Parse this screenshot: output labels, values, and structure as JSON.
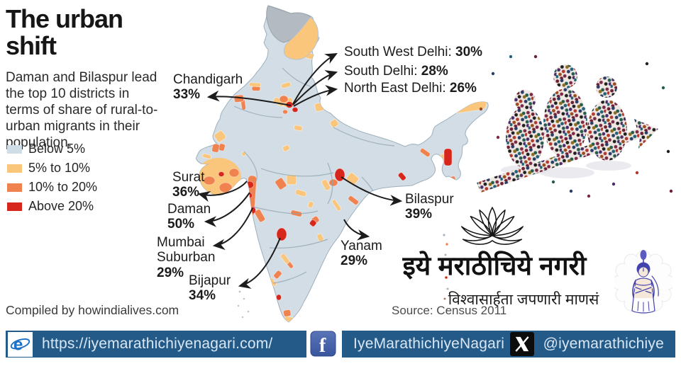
{
  "header": {
    "title": "The urban shift",
    "subtitle": "Daman and Bilaspur lead the top 10 districts in terms of share of rural-to-urban migrants in their population."
  },
  "legend": {
    "items": [
      {
        "label": "Below 5%",
        "color": "#cfdde6"
      },
      {
        "label": "5% to 10%",
        "color": "#f9c67c"
      },
      {
        "label": "10% to 20%",
        "color": "#f08250"
      },
      {
        "label": "Above 20%",
        "color": "#d7271d"
      }
    ]
  },
  "map": {
    "callouts": [
      {
        "name": "Chandigarh",
        "value": "33%"
      },
      {
        "name": "South West Delhi: ",
        "value": "30%"
      },
      {
        "name": "South Delhi: ",
        "value": "28%"
      },
      {
        "name": "North East Delhi: ",
        "value": "26%"
      },
      {
        "name": "Surat",
        "value": "36%"
      },
      {
        "name": "Daman",
        "value": "50%"
      },
      {
        "name": "Mumbai Suburban",
        "value": "29%"
      },
      {
        "name": "Bijapur",
        "value": "34%"
      },
      {
        "name": "Bilaspur",
        "value": "39%"
      },
      {
        "name": "Yanam",
        "value": "29%"
      }
    ],
    "source": "Source: Census 2011",
    "compiled_by": "Compiled by howindialives.com"
  },
  "branding": {
    "name_devanagari": "इये मराठीचिये नगरी",
    "tagline_devanagari": "विश्वासार्हता जपणारी माणसं"
  },
  "footer": {
    "website": "https://iyemarathichiyenagari.com/",
    "facebook_label": "IyeMarathichiyeNagari",
    "x_handle": "@iyemarathichiye"
  },
  "chart_data": {
    "type": "choropleth_map",
    "region": "India (districts)",
    "metric": "Share of rural-to-urban migrants in district population",
    "bins": [
      {
        "range": "Below 5%",
        "color": "#cfdde6"
      },
      {
        "range": "5% to 10%",
        "color": "#f9c67c"
      },
      {
        "range": "10% to 20%",
        "color": "#f08250"
      },
      {
        "range": "Above 20%",
        "color": "#d7271d"
      }
    ],
    "labeled_districts": [
      {
        "district": "Daman",
        "share_pct": 50
      },
      {
        "district": "Bilaspur",
        "share_pct": 39
      },
      {
        "district": "Surat",
        "share_pct": 36
      },
      {
        "district": "Bijapur",
        "share_pct": 34
      },
      {
        "district": "Chandigarh",
        "share_pct": 33
      },
      {
        "district": "South West Delhi",
        "share_pct": 30
      },
      {
        "district": "Mumbai Suburban",
        "share_pct": 29
      },
      {
        "district": "Yanam",
        "share_pct": 29
      },
      {
        "district": "South Delhi",
        "share_pct": 28
      },
      {
        "district": "North East Delhi",
        "share_pct": 26
      }
    ],
    "source": "Census 2011"
  }
}
